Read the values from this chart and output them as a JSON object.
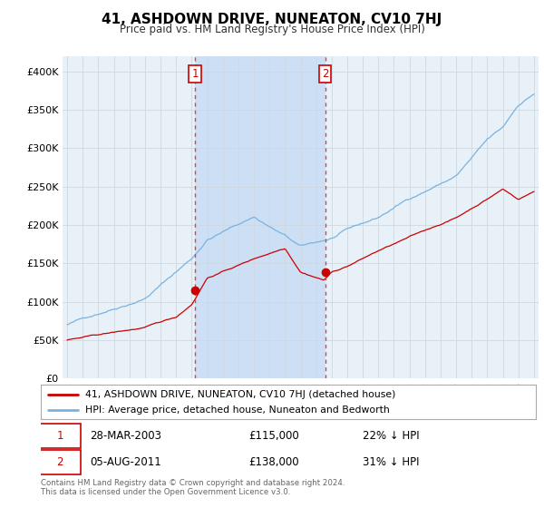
{
  "title": "41, ASHDOWN DRIVE, NUNEATON, CV10 7HJ",
  "subtitle": "Price paid vs. HM Land Registry's House Price Index (HPI)",
  "background_color": "#e8f0f8",
  "highlight_color": "#ccdff5",
  "ylim": [
    0,
    420000
  ],
  "yticks": [
    0,
    50000,
    100000,
    150000,
    200000,
    250000,
    300000,
    350000,
    400000
  ],
  "ytick_labels": [
    "£0",
    "£50K",
    "£100K",
    "£150K",
    "£200K",
    "£250K",
    "£300K",
    "£350K",
    "£400K"
  ],
  "hpi_color": "#7ab3e0",
  "price_color": "#cc0000",
  "marker_color": "#cc0000",
  "transaction1": {
    "date": "28-MAR-2003",
    "price": 115000,
    "label": "1",
    "hpi_pct": "22% ↓ HPI"
  },
  "transaction2": {
    "date": "05-AUG-2011",
    "price": 138000,
    "label": "2",
    "hpi_pct": "31% ↓ HPI"
  },
  "legend_line1": "41, ASHDOWN DRIVE, NUNEATON, CV10 7HJ (detached house)",
  "legend_line2": "HPI: Average price, detached house, Nuneaton and Bedworth",
  "footnote": "Contains HM Land Registry data © Crown copyright and database right 2024.\nThis data is licensed under the Open Government Licence v3.0.",
  "grid_color": "#d0d8e0",
  "vline_color": "#dd4444",
  "t1_x": 2003.21,
  "t1_y": 115000,
  "t2_x": 2011.58,
  "t2_y": 138000,
  "xlim_left": 1994.7,
  "xlim_right": 2025.3
}
